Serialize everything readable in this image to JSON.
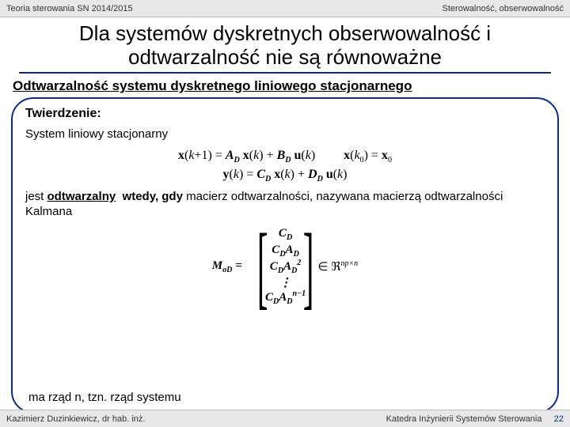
{
  "header": {
    "left": "Teoria sterowania SN 2014/2015",
    "right": "Sterowalność, obserwowalność"
  },
  "title": "Dla systemów dyskretnych obserwowalność i odtwarzalność nie są równoważne",
  "subtitle": "Odtwarzalność systemu dyskretnego liniowego stacjonarnego",
  "theorem": {
    "label": "Twierdzenie:",
    "line1": "System liniowy stacjonarny",
    "eq1a": "x(k+1) = A",
    "eq1b": "x(k) + B",
    "eq1c": "u(k)",
    "eq2": "x(k₀) = x₀",
    "eq3a": "y(k) = C",
    "eq3b": "x(k) + D",
    "eq3c": "u(k)",
    "line2a": "jest ",
    "line2b": "odtwarzalny",
    "line2c": " wtedy, gdy",
    "line2d": " macierz odtwarzalności, nazywana macierzą odtwarzalności Kalmana",
    "matrix": {
      "lhs": "M",
      "lhs_sub": "oD",
      "rows": [
        "C_D",
        "C_D A_D",
        "C_D A_D²",
        "⋮",
        "C_D A_D^{n−1}"
      ],
      "space": "∈ ℜ",
      "dims_sup": "np×n"
    },
    "final": "ma rząd n, tzn. rząd systemu"
  },
  "footer": {
    "left": "Kazimierz Duzinkiewicz, dr hab. inż.",
    "right": "Katedra Inżynierii Systemów Sterowania",
    "page": "22"
  }
}
